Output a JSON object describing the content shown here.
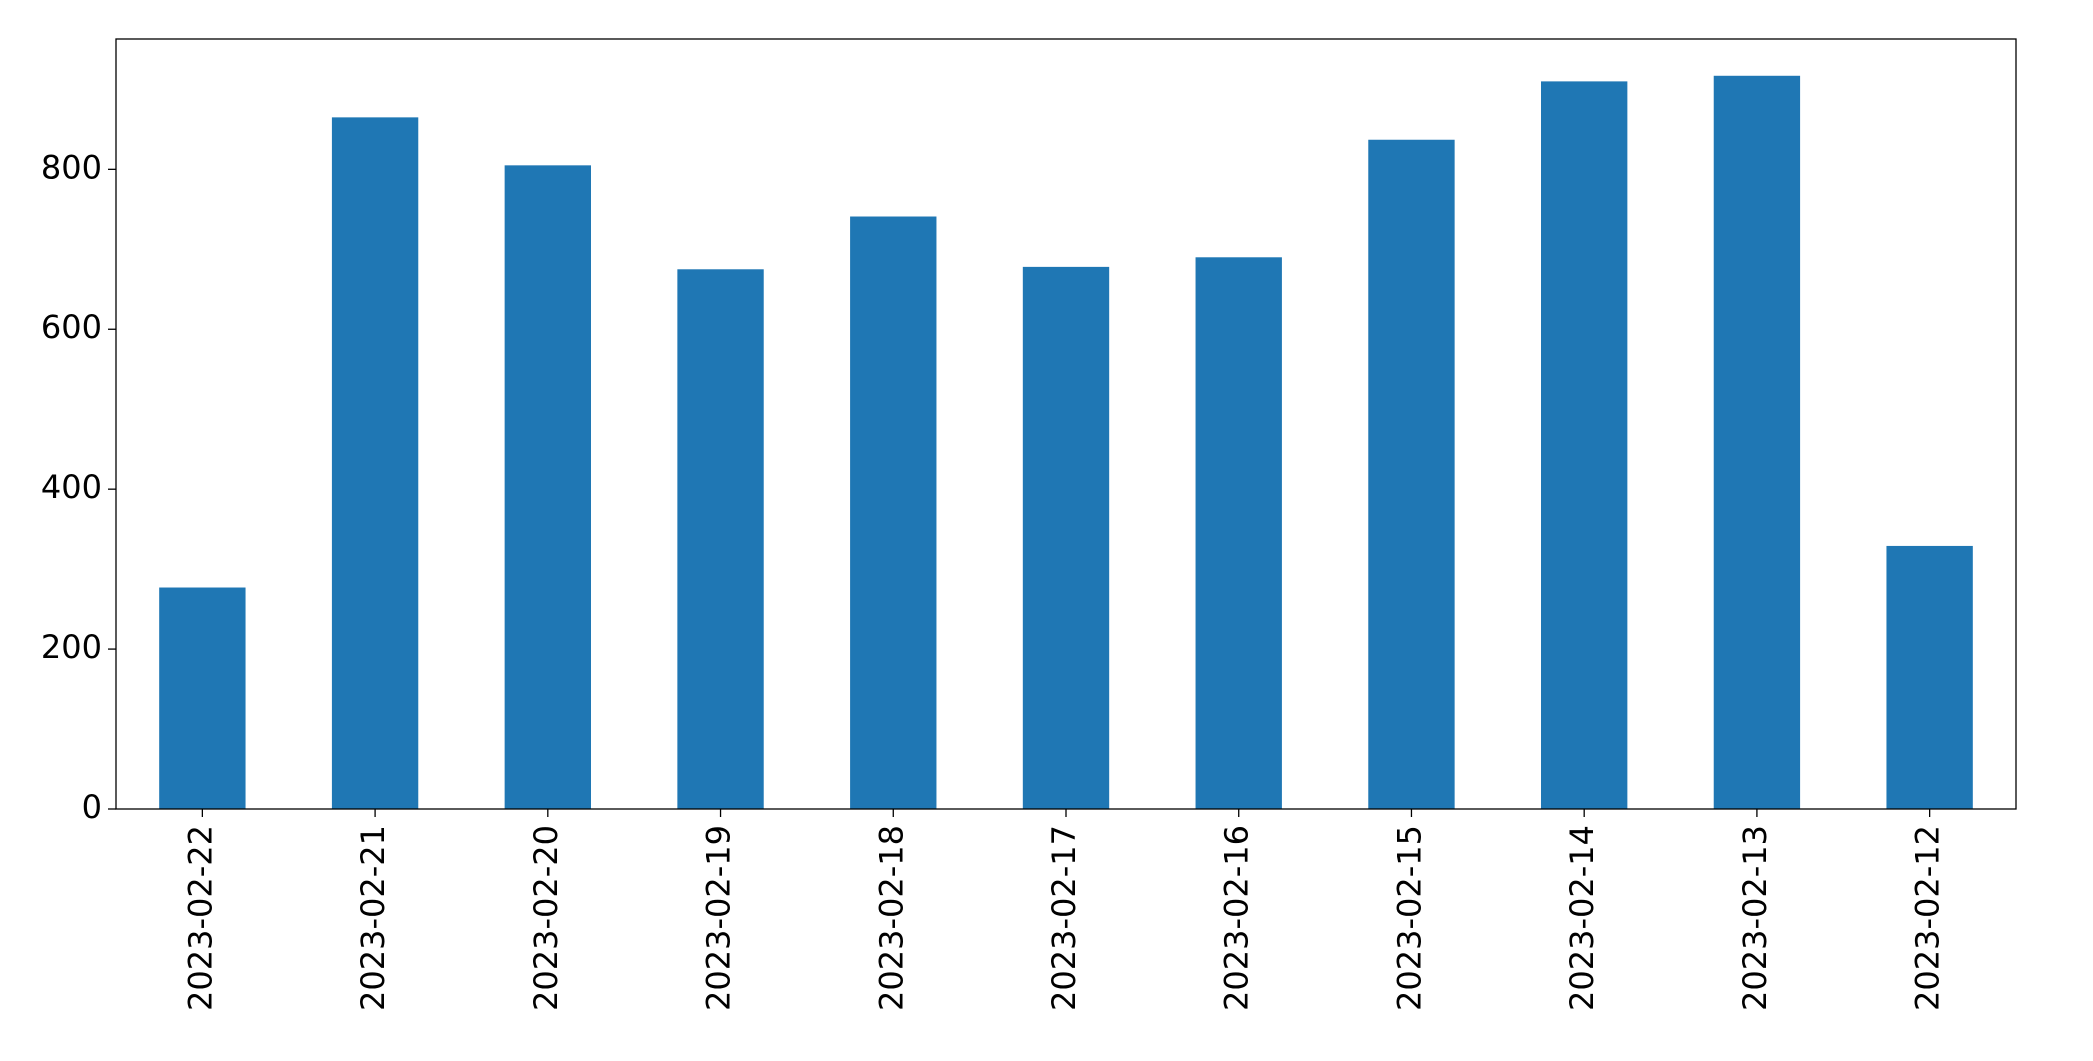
{
  "chart_data": {
    "type": "bar",
    "categories": [
      "2023-02-22",
      "2023-02-21",
      "2023-02-20",
      "2023-02-19",
      "2023-02-18",
      "2023-02-17",
      "2023-02-16",
      "2023-02-15",
      "2023-02-14",
      "2023-02-13",
      "2023-02-12"
    ],
    "values": [
      277,
      865,
      805,
      675,
      741,
      678,
      690,
      837,
      910,
      917,
      329
    ],
    "color": "#1f77b4",
    "ylim": [
      0,
      963
    ],
    "yticks": [
      0,
      200,
      400,
      600,
      800
    ],
    "grid": false
  }
}
